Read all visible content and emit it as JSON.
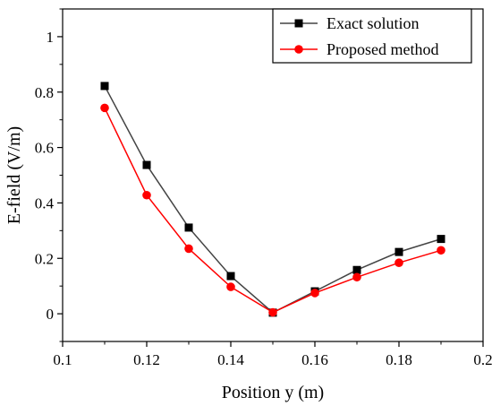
{
  "chart_data": {
    "type": "line",
    "title": "",
    "xlabel": "Position y (m)",
    "ylabel": "E-field (V/m)",
    "xlim": [
      0.1,
      0.2
    ],
    "ylim": [
      -0.1,
      1.1
    ],
    "xticks": [
      0.1,
      0.12,
      0.14,
      0.16,
      0.18,
      0.2
    ],
    "xtick_labels": [
      "0.1",
      "0.12",
      "0.14",
      "0.16",
      "0.18",
      "0.2"
    ],
    "yticks": [
      0,
      0.2,
      0.4,
      0.6,
      0.8,
      1
    ],
    "ytick_labels": [
      "0",
      "0.2",
      "0.4",
      "0.6",
      "0.8",
      "1"
    ],
    "grid": false,
    "legend_position": "top-right",
    "x": [
      0.11,
      0.12,
      0.13,
      0.14,
      0.15,
      0.16,
      0.17,
      0.18,
      0.19
    ],
    "series": [
      {
        "name": "Exact solution",
        "color": "#000000",
        "line_color": "#444444",
        "marker": "square",
        "values": [
          0.822,
          0.537,
          0.311,
          0.136,
          0.004,
          0.081,
          0.158,
          0.223,
          0.27
        ]
      },
      {
        "name": "Proposed method",
        "color": "#ff0000",
        "line_color": "#ff0000",
        "marker": "circle",
        "values": [
          0.743,
          0.428,
          0.235,
          0.097,
          0.005,
          0.075,
          0.132,
          0.184,
          0.229
        ]
      }
    ]
  }
}
